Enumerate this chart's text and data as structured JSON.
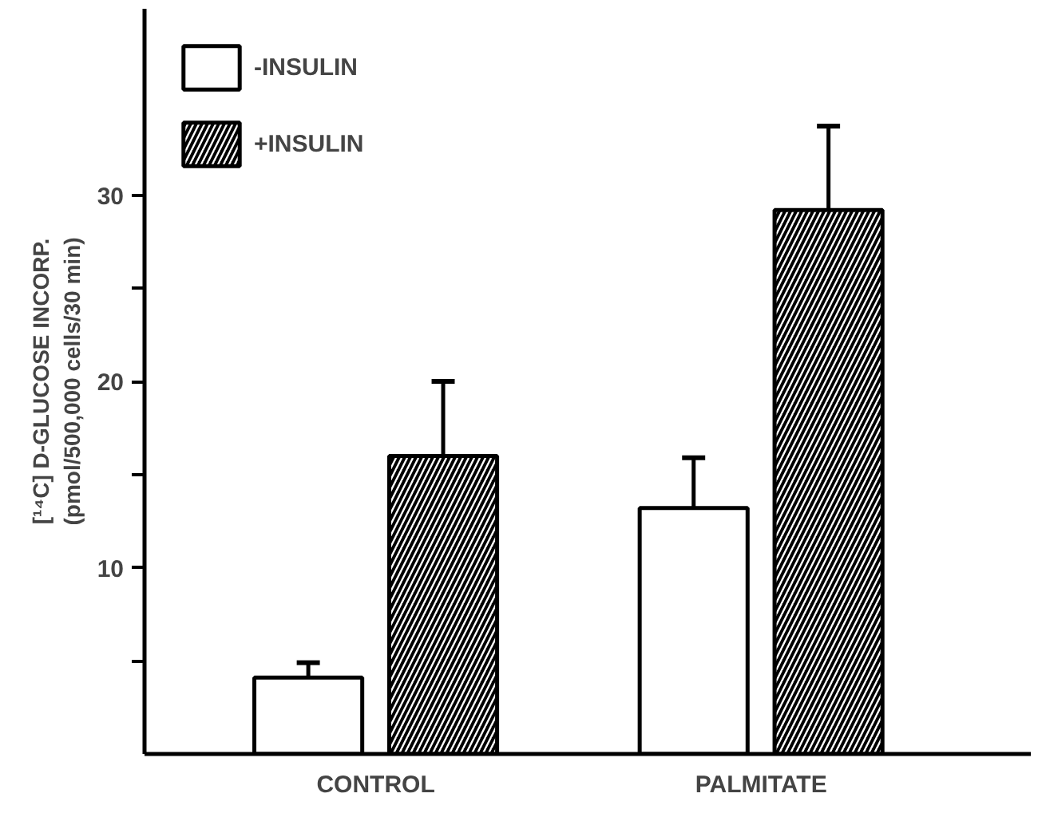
{
  "chart_data": {
    "type": "bar",
    "ylabel": "[¹⁴C] D-GLUCOSE INCORP.\n(pmol/500,000 cells/30 min)",
    "categories": [
      "CONTROL",
      "PALMITATE"
    ],
    "series": [
      {
        "name": "-INSULIN",
        "color": "#ffffff",
        "values": [
          4.1,
          13.2
        ],
        "errors": [
          [
            4.1,
            4.9
          ],
          [
            13.2,
            15.9
          ]
        ]
      },
      {
        "name": "+INSULIN",
        "color": "#000000",
        "values": [
          16.0,
          29.2
        ],
        "errors": [
          [
            16.0,
            20.0
          ],
          [
            29.2,
            33.7
          ]
        ]
      }
    ],
    "ylim": [
      0,
      40
    ],
    "yticks": [
      {
        "value": 5,
        "label": null
      },
      10,
      {
        "value": 15,
        "label": null
      },
      20,
      {
        "value": 25,
        "label": null
      },
      30
    ],
    "grid": false,
    "legend": "top left"
  }
}
